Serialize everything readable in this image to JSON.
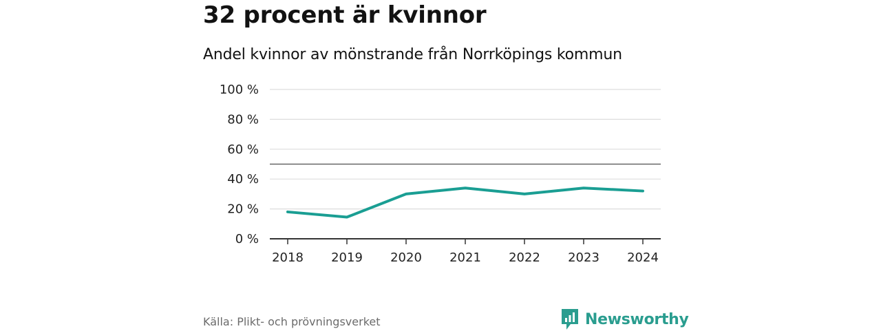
{
  "colors": {
    "line": "#1a9e93",
    "grid": "#dddddd",
    "axis": "#333333",
    "ref": "#666666",
    "brand": "#2a9d8f"
  },
  "footer": {
    "source": "Källa: Plikt- och prövningsverket",
    "brand": "Newsworthy"
  },
  "chart_data": {
    "type": "line",
    "title": "32 procent är kvinnor",
    "subtitle": "Andel kvinnor av mönstrande från Norrköpings kommun",
    "xlabel": "",
    "ylabel": "",
    "categories": [
      "2018",
      "2019",
      "2020",
      "2021",
      "2022",
      "2023",
      "2024"
    ],
    "series": [
      {
        "name": "Andel kvinnor",
        "values": [
          18,
          14.5,
          30,
          34,
          30,
          34,
          32
        ]
      }
    ],
    "ylim": [
      0,
      100
    ],
    "yticks": [
      0,
      20,
      40,
      60,
      80,
      100
    ],
    "ytick_labels": [
      "0 %",
      "20 %",
      "40 %",
      "60 %",
      "80 %",
      "100 %"
    ],
    "reference_line": 50,
    "grid": true
  }
}
